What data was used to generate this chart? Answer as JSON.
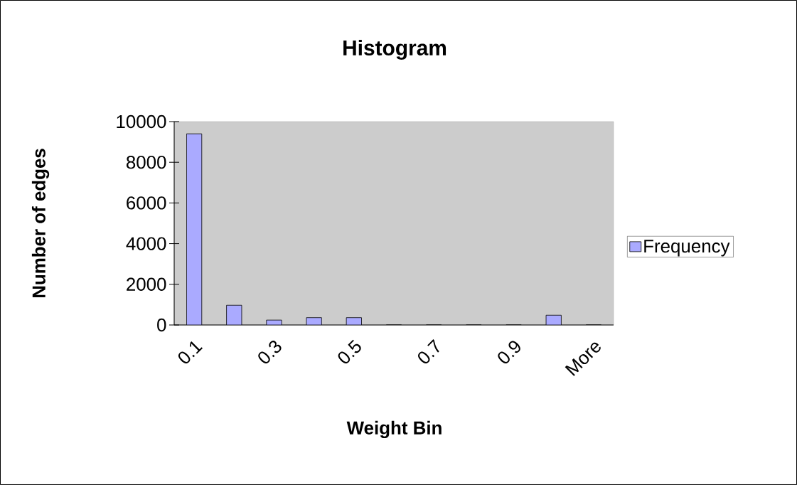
{
  "chart_data": {
    "type": "bar",
    "title": "Histogram",
    "xlabel": "Weight Bin",
    "ylabel": "Number of edges",
    "categories": [
      "0.1",
      null,
      "0.3",
      null,
      "0.5",
      null,
      "0.7",
      null,
      "0.9",
      null,
      "More"
    ],
    "series": [
      {
        "name": "Frequency",
        "color": "#aaaaff",
        "values": [
          9400,
          970,
          240,
          360,
          360,
          0,
          0,
          0,
          0,
          480,
          0
        ]
      }
    ],
    "ylim": [
      0,
      10000
    ],
    "yticks": [
      0,
      2000,
      4000,
      6000,
      8000,
      10000
    ],
    "grid": false,
    "legend": "right"
  }
}
